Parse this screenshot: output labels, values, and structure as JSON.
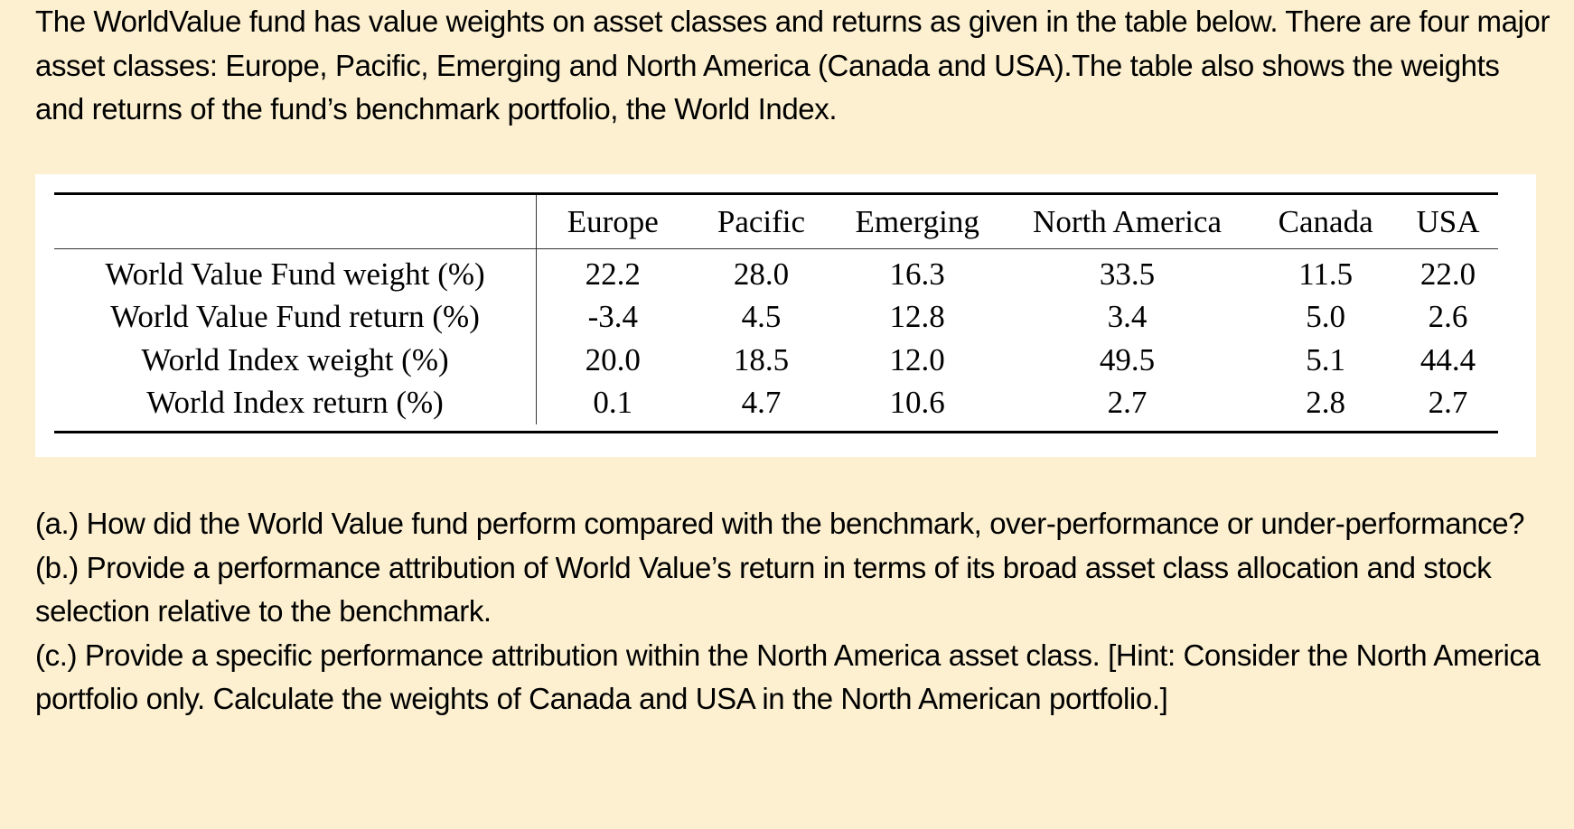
{
  "intro": {
    "text": "The WorldValue fund has value weights on asset classes and returns as given in the table below. There are four major asset classes: Europe, Pacific, Emerging and North America (Canada and USA).The table also shows the weights and returns of the fund’s benchmark portfolio, the World Index."
  },
  "table": {
    "columns": [
      "",
      "Europe",
      "Pacific",
      "Emerging",
      "North America",
      "Canada",
      "USA"
    ],
    "rows": [
      {
        "label": "World Value Fund weight (%)",
        "values": [
          "22.2",
          "28.0",
          "16.3",
          "33.5",
          "11.5",
          "22.0"
        ]
      },
      {
        "label": "World Value Fund return (%)",
        "values": [
          "-3.4",
          "4.5",
          "12.8",
          "3.4",
          "5.0",
          "2.6"
        ]
      },
      {
        "label": "World Index weight (%)",
        "values": [
          "20.0",
          "18.5",
          "12.0",
          "49.5",
          "5.1",
          "44.4"
        ]
      },
      {
        "label": "World Index return (%)",
        "values": [
          "0.1",
          "4.7",
          "10.6",
          "2.7",
          "2.8",
          "2.7"
        ]
      }
    ]
  },
  "questions": [
    {
      "text": "(a.) How did the World Value fund perform compared with the benchmark, over-performance or under-performance?"
    },
    {
      "text": "(b.) Provide a performance attribution of World Value’s return in terms of its broad asset class allocation and stock selection relative to the benchmark."
    },
    {
      "text": "(c.) Provide a specific performance attribution within the North America asset class. [Hint: Consider the North America portfolio only. Calculate the weights of Canada and USA in the North American portfolio.]"
    }
  ]
}
